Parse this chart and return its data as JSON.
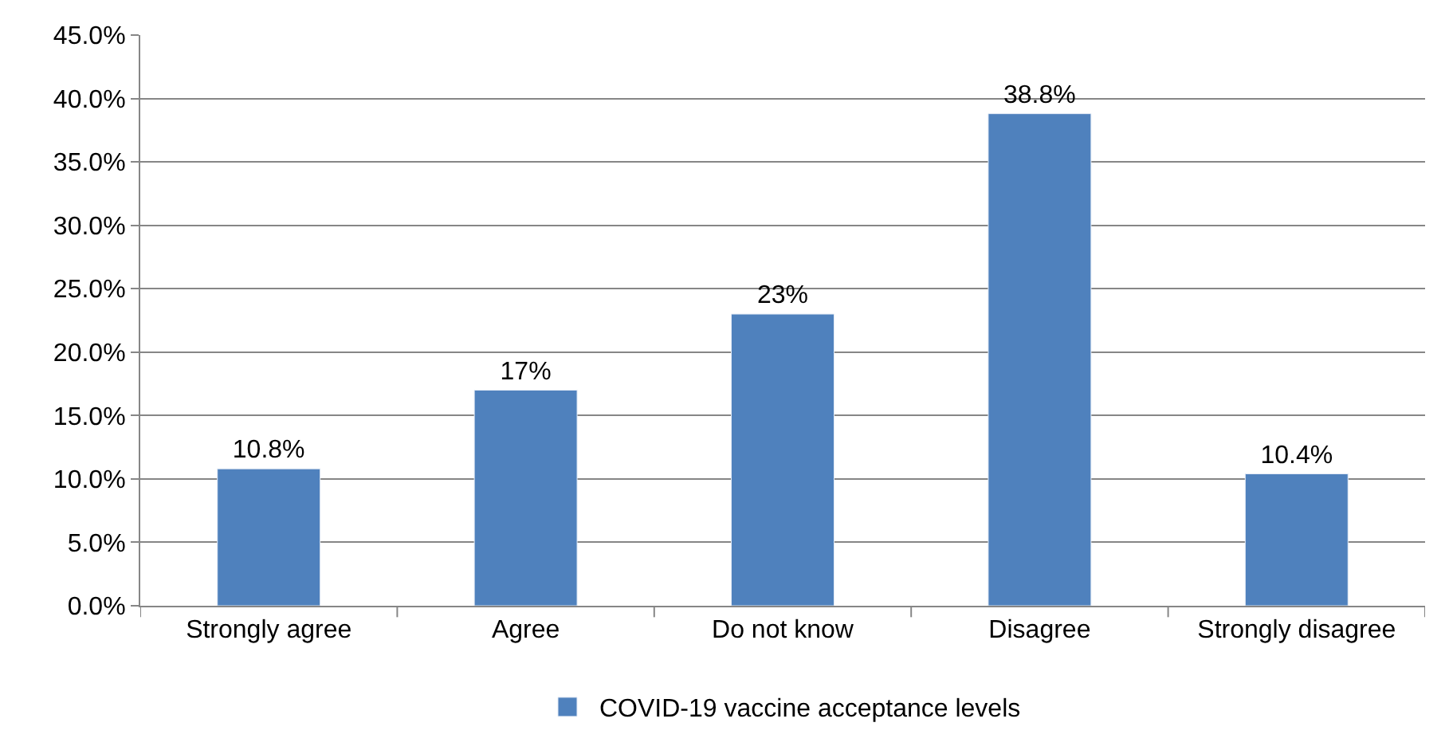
{
  "chart_data": {
    "type": "bar",
    "categories": [
      "Strongly agree",
      "Agree",
      "Do not know",
      "Disagree",
      "Strongly disagree"
    ],
    "series": [
      {
        "name": "COVID-19 vaccine acceptance levels",
        "color": "#4f81bd",
        "values": [
          10.8,
          17,
          23,
          38.8,
          10.4
        ],
        "value_labels": [
          "10.8%",
          "17%",
          "23%",
          "38.8%",
          "10.4%"
        ]
      }
    ],
    "ylim": [
      0,
      45
    ],
    "yticks": [
      {
        "value": 0,
        "label": "0.0%"
      },
      {
        "value": 5,
        "label": "5.0%"
      },
      {
        "value": 10,
        "label": "10.0%"
      },
      {
        "value": 15,
        "label": "15.0%"
      },
      {
        "value": 20,
        "label": "20.0%"
      },
      {
        "value": 25,
        "label": "25.0%"
      },
      {
        "value": 30,
        "label": "30.0%"
      },
      {
        "value": 35,
        "label": "35.0%"
      },
      {
        "value": 40,
        "label": "40.0%"
      },
      {
        "value": 45,
        "label": "45.0%"
      }
    ],
    "grid": "y",
    "legend": "bottom"
  }
}
